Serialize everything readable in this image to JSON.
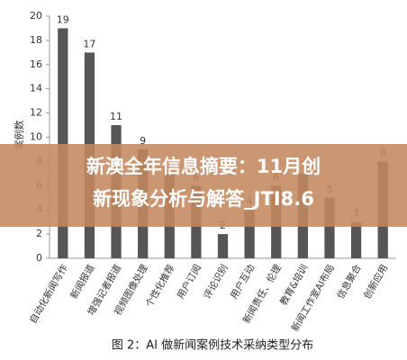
{
  "chart_data": {
    "type": "bar",
    "y_label": "案例数",
    "caption": "图 2：AI 做新闻案例技术采纳类型分布",
    "overlay_lines": [
      "新澳全年信息摘要：11月创",
      "新现象分析与解答_JTI8.6"
    ],
    "categories": [
      "自动化新闻写作",
      "新闻报道",
      "增强记者报道",
      "视频图像处理",
      "个性化推荐",
      "用户订阅",
      "评论识别",
      "用户互动",
      "新闻责任、伦理",
      "教育&培训",
      "新闻工作室AI布局",
      "信息聚合",
      "创新应用"
    ],
    "values": [
      19,
      17,
      11,
      9,
      7,
      6,
      2,
      4,
      6,
      7,
      5,
      3,
      8
    ],
    "color": "#565656",
    "ylim": [
      0,
      20
    ],
    "yticks": [
      0,
      2,
      4,
      6,
      8,
      10,
      12,
      14,
      16,
      18,
      20
    ]
  }
}
